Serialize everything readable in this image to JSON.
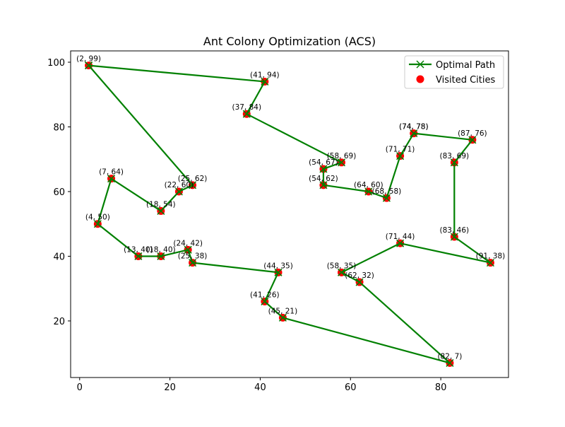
{
  "chart_data": {
    "type": "line",
    "title": "Ant Colony Optimization (ACS)",
    "xlabel": "",
    "ylabel": "",
    "xlim": [
      -2,
      95
    ],
    "ylim": [
      2.5,
      103.5
    ],
    "xticks": [
      0,
      20,
      40,
      60,
      80
    ],
    "yticks": [
      20,
      40,
      60,
      80,
      100
    ],
    "grid": false,
    "legend_position": "top-right",
    "colors": {
      "path": "#008000",
      "cities": "#ff0000"
    },
    "series": [
      {
        "name": "Optimal Path",
        "kind": "line-x-markers",
        "points": [
          [
            2,
            99
          ],
          [
            41,
            94
          ],
          [
            37,
            84
          ],
          [
            58,
            69
          ],
          [
            54,
            67
          ],
          [
            54,
            62
          ],
          [
            64,
            60
          ],
          [
            68,
            58
          ],
          [
            71,
            71
          ],
          [
            74,
            78
          ],
          [
            87,
            76
          ],
          [
            83,
            69
          ],
          [
            83,
            46
          ],
          [
            91,
            38
          ],
          [
            71,
            44
          ],
          [
            58,
            35
          ],
          [
            62,
            32
          ],
          [
            82,
            7
          ],
          [
            45,
            21
          ],
          [
            41,
            26
          ],
          [
            44,
            35
          ],
          [
            25,
            38
          ],
          [
            24,
            42
          ],
          [
            18,
            40
          ],
          [
            13,
            40
          ],
          [
            4,
            50
          ],
          [
            7,
            64
          ],
          [
            18,
            54
          ],
          [
            22,
            60
          ],
          [
            25,
            62
          ],
          [
            2,
            99
          ]
        ]
      },
      {
        "name": "Visited Cities",
        "kind": "scatter",
        "points": [
          [
            2,
            99
          ],
          [
            41,
            94
          ],
          [
            37,
            84
          ],
          [
            58,
            69
          ],
          [
            54,
            67
          ],
          [
            54,
            62
          ],
          [
            64,
            60
          ],
          [
            68,
            58
          ],
          [
            71,
            71
          ],
          [
            74,
            78
          ],
          [
            74,
            78
          ],
          [
            87,
            76
          ],
          [
            83,
            69
          ],
          [
            83,
            46
          ],
          [
            91,
            38
          ],
          [
            71,
            44
          ],
          [
            58,
            35
          ],
          [
            62,
            32
          ],
          [
            82,
            7
          ],
          [
            45,
            21
          ],
          [
            41,
            26
          ],
          [
            44,
            35
          ],
          [
            25,
            38
          ],
          [
            24,
            42
          ],
          [
            18,
            40
          ],
          [
            13,
            40
          ],
          [
            4,
            50
          ],
          [
            7,
            64
          ],
          [
            18,
            54
          ],
          [
            22,
            60
          ],
          [
            25,
            62
          ]
        ]
      }
    ],
    "annotations": [
      "(2, 99)",
      "(41, 94)",
      "(37, 84)",
      "(58, 69)",
      "(54, 67)",
      "(54, 62)",
      "(64, 60)",
      "(68, 58)",
      "(71, 71)",
      "(74, 78)",
      "(74, 78)",
      "(87, 76)",
      "(83, 69)",
      "(83, 46)",
      "(91, 38)",
      "(71, 44)",
      "(58, 35)",
      "(62, 32)",
      "(82, 7)",
      "(45, 21)",
      "(41, 26)",
      "(44, 35)",
      "(25, 38)",
      "(24, 42)",
      "(18, 40)",
      "(13, 40)",
      "(4, 50)",
      "(7, 64)",
      "(18, 54)",
      "(22, 60)",
      "(25, 62)"
    ]
  }
}
